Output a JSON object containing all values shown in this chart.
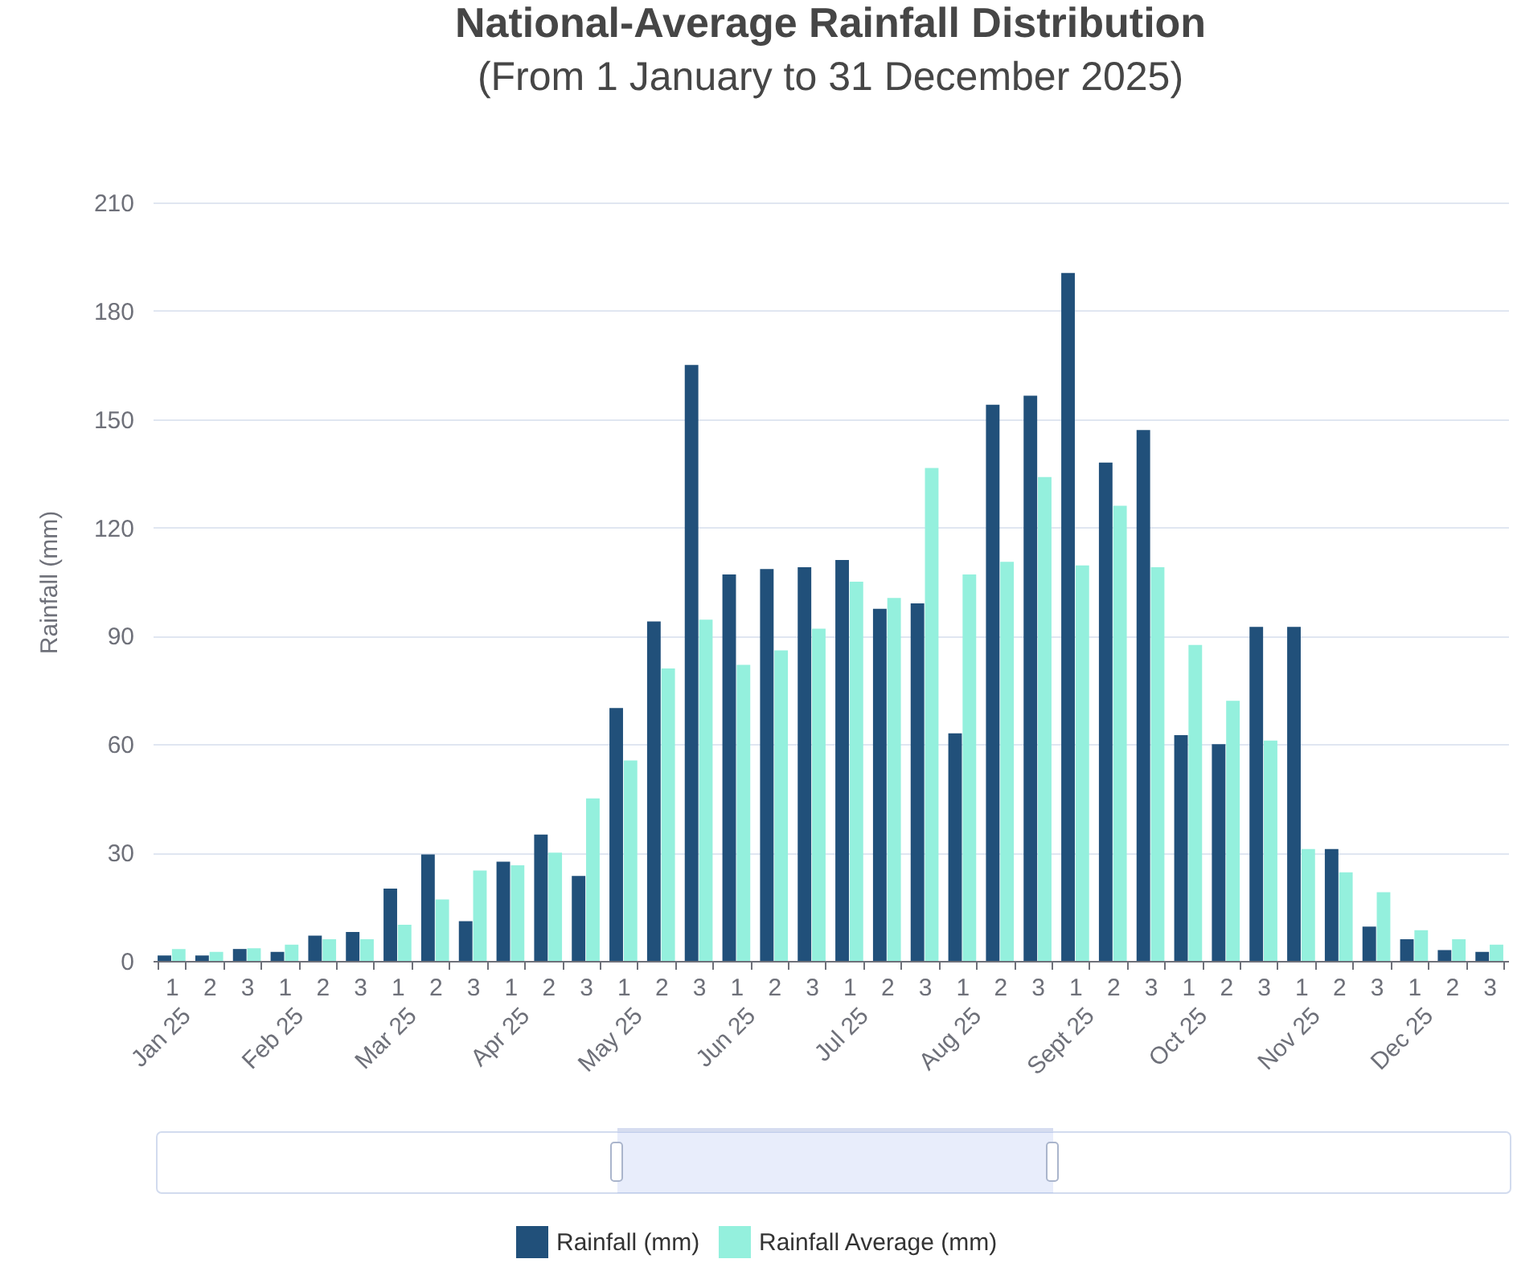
{
  "chart_data": {
    "type": "bar",
    "title": "National-Average Rainfall Distribution",
    "subtitle": "(From 1 January to 31 December 2025)",
    "ylabel": "Rainfall (mm)",
    "categories": [
      "1",
      "2",
      "3",
      "1",
      "2",
      "3",
      "1",
      "2",
      "3",
      "1",
      "2",
      "3",
      "1",
      "2",
      "3",
      "1",
      "2",
      "3",
      "1",
      "2",
      "3",
      "1",
      "2",
      "3",
      "1",
      "2",
      "3",
      "1",
      "2",
      "3",
      "1",
      "2",
      "3",
      "1",
      "2",
      "3"
    ],
    "annotations": [
      "Jan 25",
      "Feb 25",
      "Mar 25",
      "Apr 25",
      "May 25",
      "Jun 25",
      "Jul 25",
      "Aug 25",
      "Sept 25",
      "Oct 25",
      "Nov 25",
      "Dec 25"
    ],
    "series": [
      {
        "name": "Rainfall (mm)",
        "color": "#21507a",
        "values": [
          1.5,
          1.5,
          3.3,
          2.5,
          7,
          8,
          20,
          29.5,
          11,
          27.5,
          35,
          23.5,
          70,
          94,
          165,
          107,
          108.5,
          109,
          111,
          97.5,
          99,
          63,
          154,
          156.5,
          190.5,
          138,
          147,
          62.5,
          60,
          92.5,
          92.5,
          31,
          9.5,
          6,
          3,
          2.5
        ]
      },
      {
        "name": "Rainfall Average (mm)",
        "color": "#94f0dd",
        "values": [
          3.3,
          2.5,
          3.5,
          4.5,
          6,
          6,
          10,
          17,
          25,
          26.5,
          30,
          45,
          55.5,
          81,
          94.5,
          82,
          86,
          92,
          105,
          100.5,
          136.5,
          107,
          110.5,
          134,
          109.5,
          126,
          109,
          87.5,
          72,
          61,
          31,
          24.5,
          19,
          8.5,
          6,
          4.5
        ]
      }
    ],
    "ylim": [
      0,
      210
    ],
    "yticks": [
      0,
      30,
      60,
      90,
      120,
      150,
      180,
      210
    ],
    "grid": "y",
    "legend": "bottom"
  }
}
